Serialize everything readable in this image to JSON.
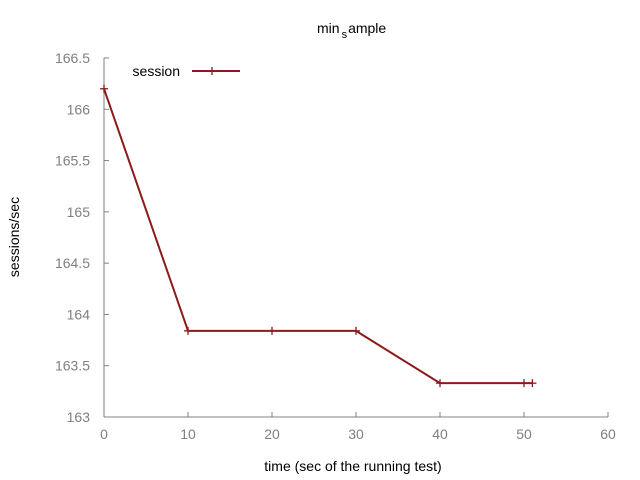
{
  "chart_data": {
    "type": "line",
    "title_main": "min",
    "title_sub": "s",
    "title_rest": "ample",
    "xlabel": "time (sec of the running test)",
    "ylabel": "sessions/sec",
    "xlim": [
      0,
      60
    ],
    "ylim": [
      163,
      166.5
    ],
    "x_ticks": [
      0,
      10,
      20,
      30,
      40,
      50,
      60
    ],
    "x_tick_labels": [
      "0",
      "10",
      "20",
      "30",
      "40",
      "50",
      "60"
    ],
    "y_ticks": [
      163,
      163.5,
      164,
      164.5,
      165,
      165.5,
      166,
      166.5
    ],
    "y_tick_labels": [
      "163",
      "163.5",
      "164",
      "164.5",
      "165",
      "165.5",
      "166",
      "166.5"
    ],
    "grid": false,
    "legend_position": "top-left",
    "series": [
      {
        "name": "session",
        "color": "#8b1a1a",
        "x": [
          0,
          10,
          20,
          30,
          40,
          50,
          51
        ],
        "y": [
          166.2,
          163.84,
          163.84,
          163.84,
          163.33,
          163.33,
          163.33
        ]
      }
    ]
  }
}
